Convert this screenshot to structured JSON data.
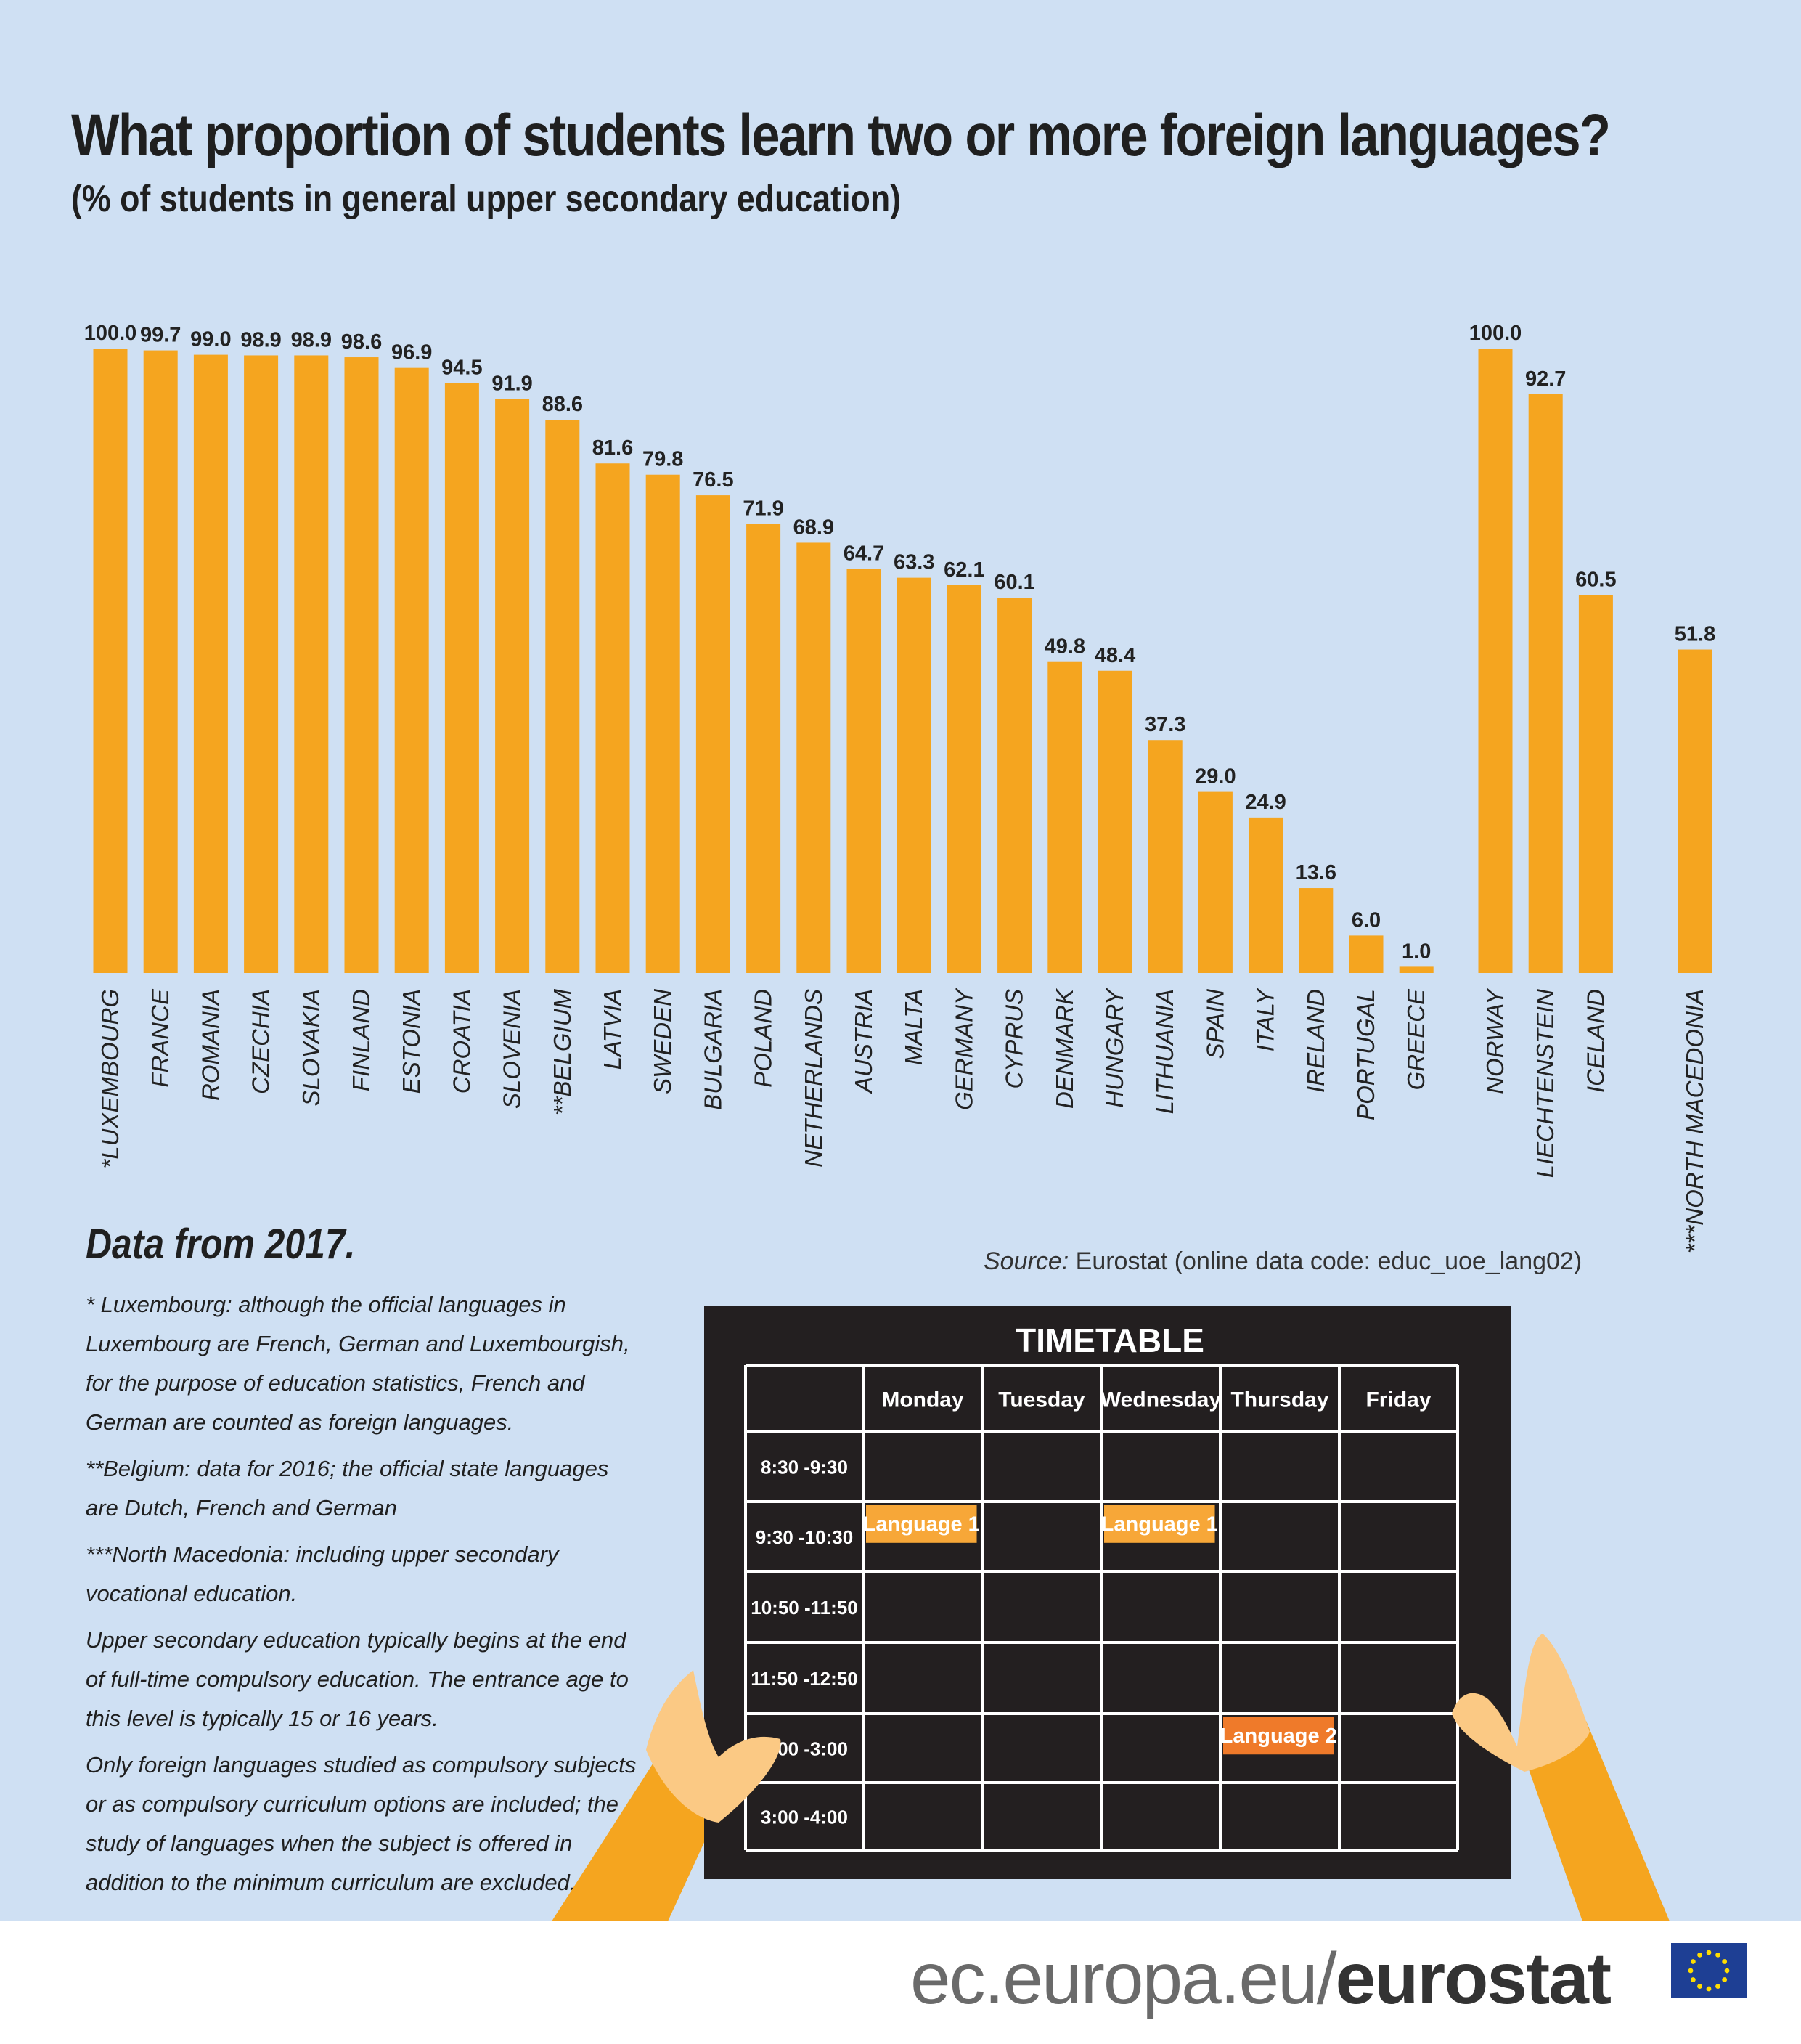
{
  "header": {
    "title": "What proportion of students learn two or more foreign languages?",
    "subtitle": "(% of students in general upper secondary education)"
  },
  "colors": {
    "bar": "#f5a51f",
    "background": "#cfe0f3",
    "timetable": "#231f20",
    "lesson_light": "#f7a738",
    "lesson_dark": "#ef7a2a"
  },
  "chart_data": {
    "type": "bar",
    "title": "What proportion of students learn two or more foreign languages?",
    "subtitle": "(% of students in general upper secondary education)",
    "ylim": [
      0,
      100
    ],
    "grid": false,
    "groups": [
      {
        "categories": [
          "*LUXEMBOURG",
          "FRANCE",
          "ROMANIA",
          "CZECHIA",
          "SLOVAKIA",
          "FINLAND",
          "ESTONIA",
          "CROATIA",
          "SLOVENIA",
          "**BELGIUM",
          "LATVIA",
          "SWEDEN",
          "BULGARIA",
          "POLAND",
          "NETHERLANDS",
          "AUSTRIA",
          "MALTA",
          "GERMANY",
          "CYPRUS",
          "DENMARK",
          "HUNGARY",
          "LITHUANIA",
          "SPAIN",
          "ITALY",
          "IRELAND",
          "PORTUGAL",
          "GREECE"
        ],
        "values": [
          100.0,
          99.7,
          99.0,
          98.9,
          98.9,
          98.6,
          96.9,
          94.5,
          91.9,
          88.6,
          81.6,
          79.8,
          76.5,
          71.9,
          68.9,
          64.7,
          63.3,
          62.1,
          60.1,
          49.8,
          48.4,
          37.3,
          29.0,
          24.9,
          13.6,
          6.0,
          1.0
        ],
        "labels": [
          "100.0",
          "99.7",
          "99.0",
          "98.9",
          "98.9",
          "98.6",
          "96.9",
          "94.5",
          "91.9",
          "88.6",
          "81.6",
          "79.8",
          "76.5",
          "71.9",
          "68.9",
          "64.7",
          "63.3",
          "62.1",
          "60.1",
          "49.8",
          "48.4",
          "37.3",
          "29.0",
          "24.9",
          "13.6",
          "6.0",
          "1.0"
        ]
      },
      {
        "categories": [
          "NORWAY",
          "LIECHTENSTEIN",
          "ICELAND"
        ],
        "values": [
          100.0,
          92.7,
          60.5
        ],
        "labels": [
          "100.0",
          "92.7",
          "60.5"
        ]
      },
      {
        "categories": [
          "***NORTH MACEDONIA"
        ],
        "values": [
          51.8
        ],
        "labels": [
          "51.8"
        ]
      }
    ]
  },
  "notes": {
    "data_year": "Data from 2017.",
    "lines": [
      "* Luxembourg: although the official languages in Luxembourg are French, German and Luxembourgish, for the purpose of education statistics, French and German are counted as foreign languages.",
      "**Belgium: data for 2016; the official state languages are Dutch, French and German",
      "***North Macedonia: including upper secondary vocational education.",
      "Upper secondary education typically begins at the end of full-time compulsory education. The entrance age to this level is typically 15 or 16 years.",
      "Only foreign languages studied as compulsory subjects or as compulsory curriculum options are included; the study of languages when the subject is offered in addition to the minimum curriculum are excluded."
    ]
  },
  "source": {
    "label": "Source:",
    "text": "Eurostat (online data code: educ_uoe_lang02)"
  },
  "timetable": {
    "title": "TIMETABLE",
    "days": [
      "Monday",
      "Tuesday",
      "Wednesday",
      "Thursday",
      "Friday"
    ],
    "times": [
      "8:30 -9:30",
      "9:30 -10:30",
      "10:50 -11:50",
      "11:50 -12:50",
      "2:00 -3:00",
      "3:00 -4:00"
    ],
    "lessons": [
      {
        "row": 1,
        "col": 0,
        "label": "Language 1",
        "color": "#f7a738"
      },
      {
        "row": 1,
        "col": 2,
        "label": "Language 1",
        "color": "#f7a738"
      },
      {
        "row": 4,
        "col": 3,
        "label": "Language 2",
        "color": "#ef7a2a"
      }
    ]
  },
  "footer": {
    "prefix": "ec.europa.eu/",
    "brand": "eurostat"
  }
}
